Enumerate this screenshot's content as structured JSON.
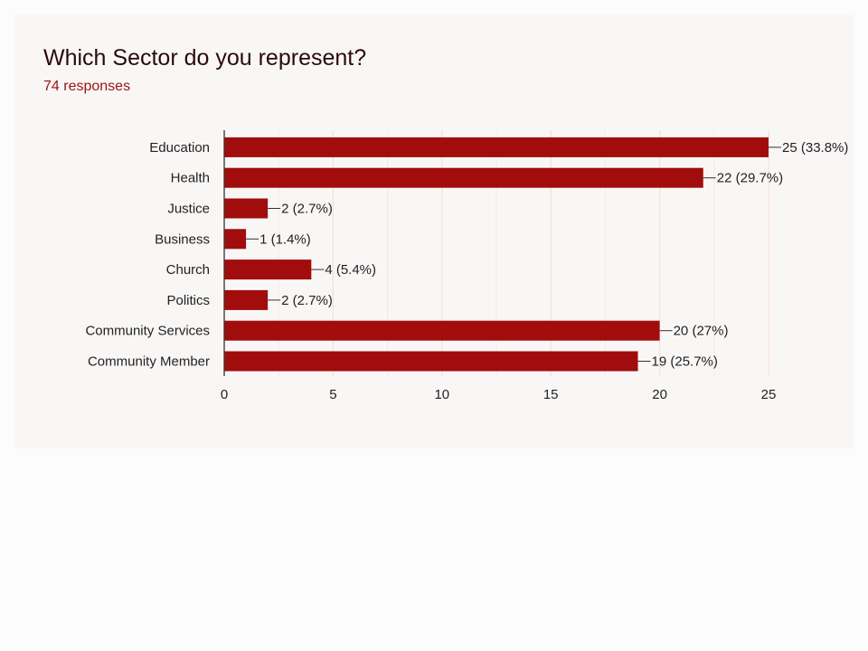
{
  "header": {
    "title": "Which Sector do you represent?",
    "responses": "74 responses"
  },
  "colors": {
    "bar": "#a10d0d",
    "grid": "#f3dede",
    "axis": "#333333",
    "title": "#2a0a0a",
    "subtitle": "#9a1410"
  },
  "chart_data": {
    "type": "bar",
    "orientation": "horizontal",
    "title": "Which Sector do you represent?",
    "categories": [
      "Education",
      "Health",
      "Justice",
      "Business",
      "Church",
      "Politics",
      "Community Services",
      "Community Member"
    ],
    "values": [
      25,
      22,
      2,
      1,
      4,
      2,
      20,
      19
    ],
    "data_labels": [
      "25 (33.8%)",
      "22 (29.7%)",
      "2 (2.7%)",
      "1 (1.4%)",
      "4 (5.4%)",
      "2 (2.7%)",
      "20 (27%)",
      "19 (25.7%)"
    ],
    "xlim": [
      0,
      25
    ],
    "xticks": [
      0,
      5,
      10,
      15,
      20,
      25
    ],
    "xlabel": "",
    "ylabel": "",
    "grid": true,
    "legend": "none"
  }
}
